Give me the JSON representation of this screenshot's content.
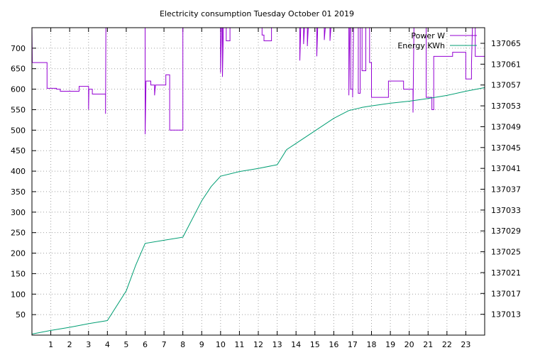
{
  "chart_data": {
    "type": "line",
    "title": "Electricity consumption Tuesday October 01 2019",
    "xlim": [
      0,
      24
    ],
    "x_ticks": [
      1,
      2,
      3,
      4,
      5,
      6,
      7,
      8,
      9,
      10,
      11,
      12,
      13,
      14,
      15,
      16,
      17,
      18,
      19,
      20,
      21,
      22,
      23
    ],
    "y_left": {
      "lim": [
        0,
        750
      ],
      "ticks": [
        50,
        100,
        150,
        200,
        250,
        300,
        350,
        400,
        450,
        500,
        550,
        600,
        650,
        700
      ]
    },
    "y_right": {
      "lim": [
        137009,
        137068
      ],
      "ticks": [
        137013,
        137017,
        137021,
        137025,
        137029,
        137033,
        137037,
        137041,
        137045,
        137049,
        137053,
        137057,
        137061,
        137065
      ]
    },
    "grid": true,
    "legend_position": "top-right",
    "series": [
      {
        "name": "Power W",
        "color": "#9400d3",
        "axis": "left",
        "style": "step",
        "points": [
          [
            0,
            750
          ],
          [
            0.02,
            665
          ],
          [
            0.8,
            665
          ],
          [
            0.8,
            602
          ],
          [
            1.3,
            602
          ],
          [
            1.3,
            600
          ],
          [
            1.5,
            600
          ],
          [
            1.5,
            595
          ],
          [
            2.5,
            595
          ],
          [
            2.5,
            607
          ],
          [
            3.0,
            607
          ],
          [
            3.0,
            550
          ],
          [
            3.02,
            600
          ],
          [
            3.2,
            600
          ],
          [
            3.2,
            588
          ],
          [
            3.9,
            588
          ],
          [
            3.9,
            540
          ],
          [
            3.92,
            750
          ],
          [
            4.0,
            750
          ],
          [
            6.0,
            750
          ],
          [
            6.0,
            490
          ],
          [
            6.05,
            620
          ],
          [
            6.3,
            620
          ],
          [
            6.3,
            610
          ],
          [
            6.5,
            610
          ],
          [
            6.5,
            585
          ],
          [
            6.55,
            610
          ],
          [
            7.1,
            610
          ],
          [
            7.1,
            635
          ],
          [
            7.3,
            635
          ],
          [
            7.3,
            500
          ],
          [
            8.0,
            500
          ],
          [
            8.0,
            750
          ],
          [
            10.0,
            750
          ],
          [
            10.0,
            640
          ],
          [
            10.05,
            750
          ],
          [
            10.1,
            750
          ],
          [
            10.1,
            630
          ],
          [
            10.15,
            750
          ],
          [
            10.3,
            750
          ],
          [
            10.3,
            718
          ],
          [
            10.5,
            718
          ],
          [
            10.5,
            750
          ],
          [
            12.2,
            750
          ],
          [
            12.2,
            732
          ],
          [
            12.3,
            732
          ],
          [
            12.3,
            718
          ],
          [
            12.7,
            718
          ],
          [
            12.7,
            750
          ],
          [
            14.2,
            750
          ],
          [
            14.2,
            670
          ],
          [
            14.25,
            750
          ],
          [
            14.4,
            750
          ],
          [
            14.4,
            710
          ],
          [
            14.45,
            750
          ],
          [
            14.6,
            750
          ],
          [
            14.6,
            705
          ],
          [
            14.65,
            750
          ],
          [
            15.1,
            750
          ],
          [
            15.1,
            680
          ],
          [
            15.15,
            750
          ],
          [
            15.5,
            750
          ],
          [
            15.5,
            720
          ],
          [
            15.55,
            750
          ],
          [
            15.8,
            750
          ],
          [
            15.8,
            718
          ],
          [
            15.85,
            750
          ],
          [
            16.8,
            750
          ],
          [
            16.8,
            585
          ],
          [
            16.85,
            750
          ],
          [
            16.9,
            750
          ],
          [
            16.9,
            600
          ],
          [
            17.0,
            600
          ],
          [
            17.0,
            580
          ],
          [
            17.05,
            750
          ],
          [
            17.3,
            750
          ],
          [
            17.3,
            590
          ],
          [
            17.4,
            590
          ],
          [
            17.4,
            750
          ],
          [
            17.5,
            750
          ],
          [
            17.5,
            645
          ],
          [
            17.7,
            645
          ],
          [
            17.7,
            750
          ],
          [
            17.9,
            750
          ],
          [
            17.9,
            665
          ],
          [
            18.0,
            665
          ],
          [
            18.0,
            580
          ],
          [
            18.9,
            580
          ],
          [
            18.9,
            620
          ],
          [
            19.7,
            620
          ],
          [
            19.7,
            600
          ],
          [
            20.2,
            600
          ],
          [
            20.2,
            543
          ],
          [
            20.25,
            750
          ],
          [
            20.9,
            750
          ],
          [
            20.9,
            580
          ],
          [
            21.2,
            580
          ],
          [
            21.2,
            550
          ],
          [
            21.3,
            550
          ],
          [
            21.3,
            680
          ],
          [
            22.3,
            680
          ],
          [
            22.3,
            690
          ],
          [
            23.0,
            690
          ],
          [
            23.0,
            625
          ],
          [
            23.3,
            625
          ],
          [
            23.3,
            660
          ],
          [
            23.35,
            750
          ],
          [
            23.5,
            750
          ],
          [
            23.5,
            680
          ],
          [
            24.0,
            680
          ]
        ]
      },
      {
        "name": "Energy KWh",
        "color": "#009e73",
        "axis": "right",
        "style": "line",
        "points": [
          [
            0,
            137009.2
          ],
          [
            1,
            137009.9
          ],
          [
            2,
            137010.5
          ],
          [
            3,
            137011.2
          ],
          [
            4,
            137011.8
          ],
          [
            5,
            137017.5
          ],
          [
            5.5,
            137022.4
          ],
          [
            6,
            137026.6
          ],
          [
            7,
            137027.2
          ],
          [
            8,
            137027.8
          ],
          [
            9,
            137034.8
          ],
          [
            9.5,
            137037.5
          ],
          [
            10,
            137039.5
          ],
          [
            11,
            137040.4
          ],
          [
            12,
            137041.0
          ],
          [
            13,
            137041.7
          ],
          [
            13.5,
            137044.6
          ],
          [
            14,
            137045.8
          ],
          [
            15,
            137048.2
          ],
          [
            16,
            137050.6
          ],
          [
            16.8,
            137052.1
          ],
          [
            17.5,
            137052.7
          ],
          [
            18,
            137053.0
          ],
          [
            19,
            137053.5
          ],
          [
            20,
            137053.9
          ],
          [
            21,
            137054.4
          ],
          [
            22,
            137055.0
          ],
          [
            23,
            137055.8
          ],
          [
            24,
            137056.5
          ]
        ]
      }
    ]
  }
}
